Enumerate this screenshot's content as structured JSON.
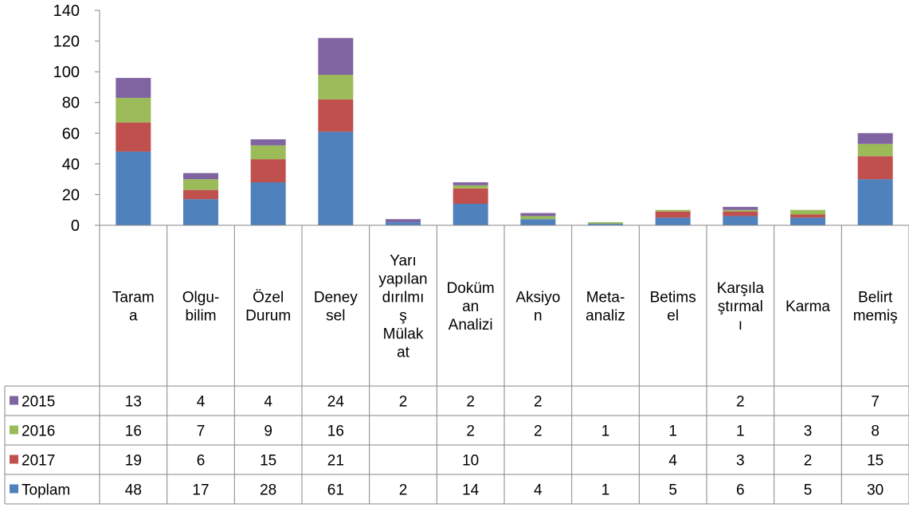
{
  "chart_data": {
    "type": "bar",
    "stacked": true,
    "categories": [
      [
        "Taram",
        "a"
      ],
      [
        "Olgu-",
        "bilim"
      ],
      [
        "Özel",
        "Durum"
      ],
      [
        "Deney",
        "sel"
      ],
      [
        "Yarı",
        "yapılan",
        "dırılmı",
        "ş",
        "Mülak",
        "at"
      ],
      [
        "Doküm",
        "an",
        "Analizi"
      ],
      [
        "Aksiyo",
        "n"
      ],
      [
        "Meta-",
        "analiz"
      ],
      [
        "Betims",
        "el"
      ],
      [
        "Karşıla",
        "ştırmal",
        "ı"
      ],
      [
        "Karma"
      ],
      [
        "Belirt",
        "memiş"
      ]
    ],
    "ylim": [
      0,
      140
    ],
    "yticks": [
      "0",
      "20",
      "40",
      "60",
      "80",
      "100",
      "120",
      "140"
    ],
    "legend_position": "data-table",
    "table_rows": [
      {
        "name": "2015",
        "color": "#8064A2",
        "values": [
          "13",
          "4",
          "4",
          "24",
          "2",
          "2",
          "2",
          "",
          "",
          "2",
          "",
          "7"
        ]
      },
      {
        "name": "2016",
        "color": "#9BBB59",
        "values": [
          "16",
          "7",
          "9",
          "16",
          "",
          "2",
          "2",
          "1",
          "1",
          "1",
          "3",
          "8"
        ]
      },
      {
        "name": "2017",
        "color": "#C0504D",
        "values": [
          "19",
          "6",
          "15",
          "21",
          "",
          "10",
          "",
          "",
          "4",
          "3",
          "2",
          "15"
        ]
      },
      {
        "name": "Toplam",
        "color": "#4F81BD",
        "values": [
          "48",
          "17",
          "28",
          "61",
          "2",
          "14",
          "4",
          "1",
          "5",
          "6",
          "5",
          "30"
        ]
      }
    ],
    "stack_order": [
      "Toplam",
      "2017",
      "2016",
      "2015"
    ]
  }
}
